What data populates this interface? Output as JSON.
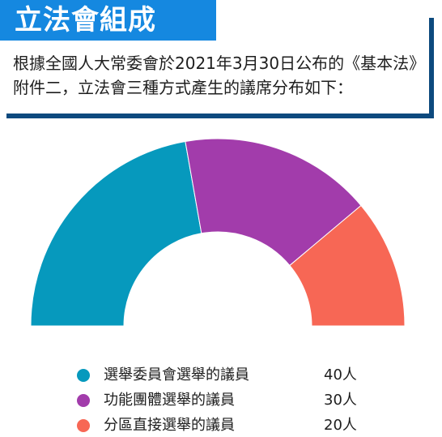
{
  "header": {
    "title": "立法會組成"
  },
  "intro": {
    "text": "根據全國人大常委會於2021年3月30日公布的《基本法》附件二，立法會三種方式產生的議席分布如下："
  },
  "chart_data": {
    "type": "pie",
    "variant": "half-donut",
    "title": "",
    "categories": [
      "選舉委員會選舉的議員",
      "功能團體選舉的議員",
      "分區直接選舉的議員"
    ],
    "values": [
      40,
      30,
      20
    ],
    "value_labels": [
      "40人",
      "30人",
      "20人"
    ],
    "colors": [
      "#0699bd",
      "#a23cab",
      "#f76755"
    ],
    "legend_position": "bottom"
  }
}
